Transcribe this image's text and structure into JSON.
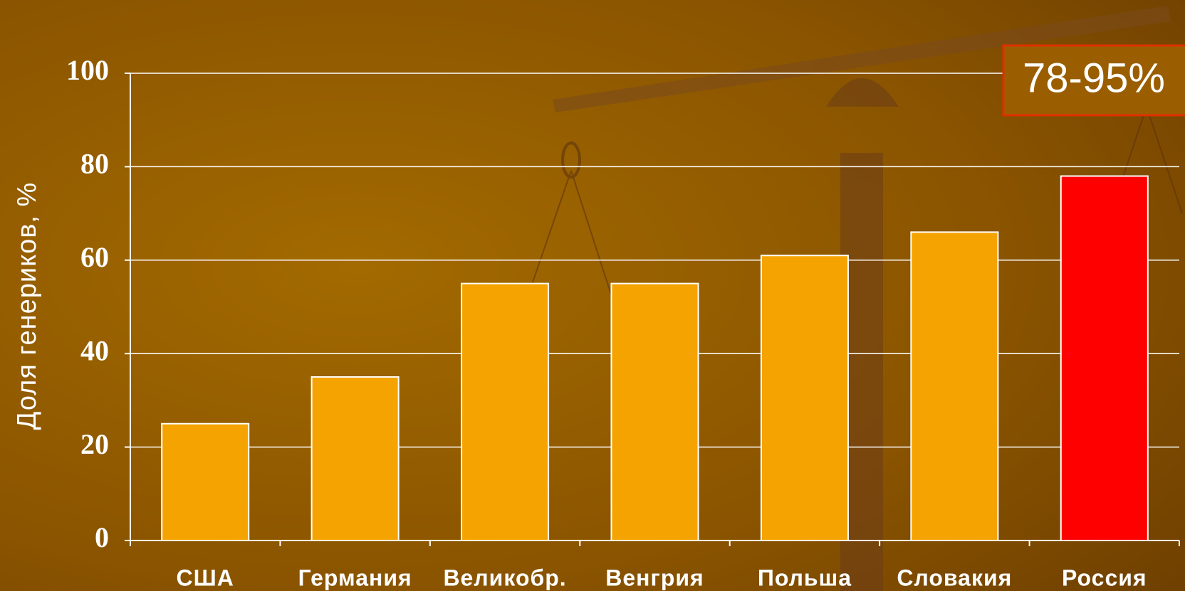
{
  "chart_data": {
    "type": "bar",
    "y_label": "Доля генериков, %",
    "annotation": "78-95%",
    "categories": [
      "США",
      "Германия",
      "Великобр.",
      "Венгрия",
      "Польша",
      "Словакия",
      "Россия"
    ],
    "values": [
      25,
      35,
      55,
      55,
      61,
      66,
      78
    ],
    "colors": [
      "#f5a300",
      "#f5a300",
      "#f5a300",
      "#f5a300",
      "#f5a300",
      "#f5a300",
      "#ff0000"
    ],
    "ylim": [
      0,
      100
    ],
    "yticks": [
      0,
      20,
      40,
      60,
      80,
      100
    ],
    "grid": true
  }
}
